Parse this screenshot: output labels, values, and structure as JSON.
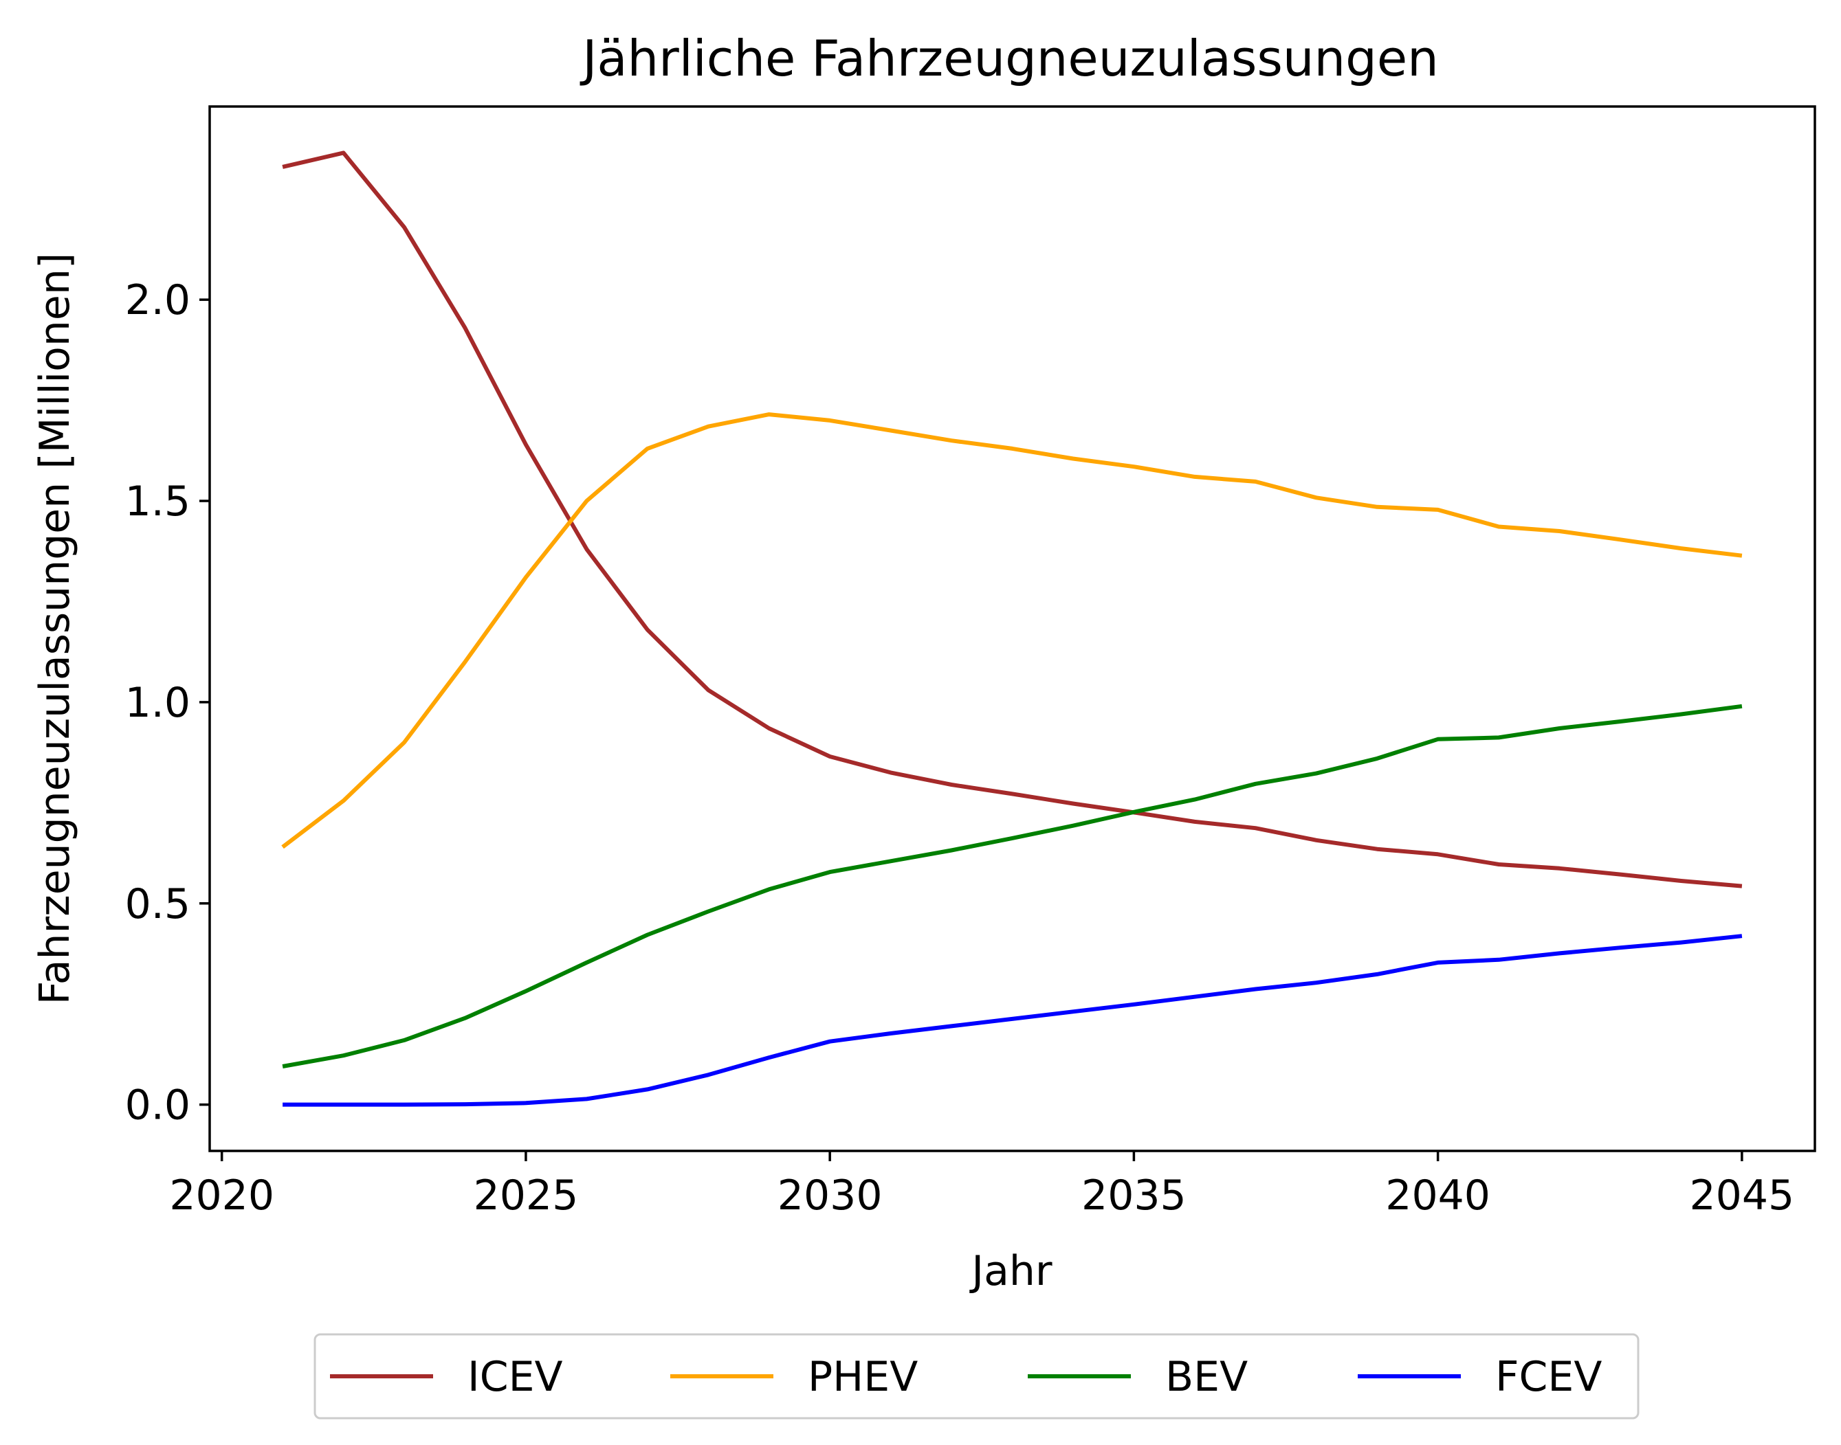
{
  "chart_data": {
    "type": "line",
    "title": "Jährliche Fahrzeugneuzulassungen",
    "xlabel": "Jahr",
    "ylabel": "Fahrzeugneuzulassungen [Millionen]",
    "xlim": [
      2019.8,
      2046.2
    ],
    "ylim": [
      -0.115,
      2.48
    ],
    "grid": false,
    "legend_position": "bottom-center",
    "x_ticks": [
      2020,
      2025,
      2030,
      2035,
      2040,
      2045
    ],
    "x_tick_labels": [
      "2020",
      "2025",
      "2030",
      "2035",
      "2040",
      "2045"
    ],
    "y_ticks": [
      0.0,
      0.5,
      1.0,
      1.5,
      2.0
    ],
    "y_tick_labels": [
      "0.0",
      "0.5",
      "1.0",
      "1.5",
      "2.0"
    ],
    "x": [
      2021,
      2022,
      2023,
      2024,
      2025,
      2026,
      2027,
      2028,
      2029,
      2030,
      2031,
      2032,
      2033,
      2034,
      2035,
      2036,
      2037,
      2038,
      2039,
      2040,
      2041,
      2042,
      2043,
      2044,
      2045
    ],
    "series": [
      {
        "name": "ICEV",
        "color": "#a52a2a",
        "values": [
          2.33,
          2.365,
          2.18,
          1.93,
          1.64,
          1.38,
          1.18,
          1.03,
          0.935,
          0.865,
          0.825,
          0.795,
          0.772,
          0.748,
          0.726,
          0.703,
          0.687,
          0.657,
          0.635,
          0.622,
          0.597,
          0.587,
          0.572,
          0.556,
          0.543
        ]
      },
      {
        "name": "PHEV",
        "color": "#ffa500",
        "values": [
          0.64,
          0.755,
          0.9,
          1.1,
          1.31,
          1.5,
          1.63,
          1.685,
          1.715,
          1.7,
          1.675,
          1.65,
          1.63,
          1.605,
          1.585,
          1.56,
          1.548,
          1.508,
          1.485,
          1.478,
          1.436,
          1.425,
          1.404,
          1.382,
          1.364
        ]
      },
      {
        "name": "BEV",
        "color": "#008000",
        "values": [
          0.095,
          0.122,
          0.16,
          0.215,
          0.282,
          0.353,
          0.422,
          0.48,
          0.535,
          0.578,
          0.605,
          0.632,
          0.662,
          0.693,
          0.727,
          0.758,
          0.797,
          0.823,
          0.86,
          0.908,
          0.912,
          0.935,
          0.952,
          0.97,
          0.99
        ]
      },
      {
        "name": "FCEV",
        "color": "#0000ff",
        "values": [
          0.0,
          0.0,
          0.0,
          0.001,
          0.004,
          0.014,
          0.038,
          0.074,
          0.117,
          0.157,
          0.177,
          0.195,
          0.213,
          0.231,
          0.249,
          0.268,
          0.287,
          0.303,
          0.324,
          0.353,
          0.36,
          0.376,
          0.39,
          0.403,
          0.419
        ]
      }
    ]
  }
}
